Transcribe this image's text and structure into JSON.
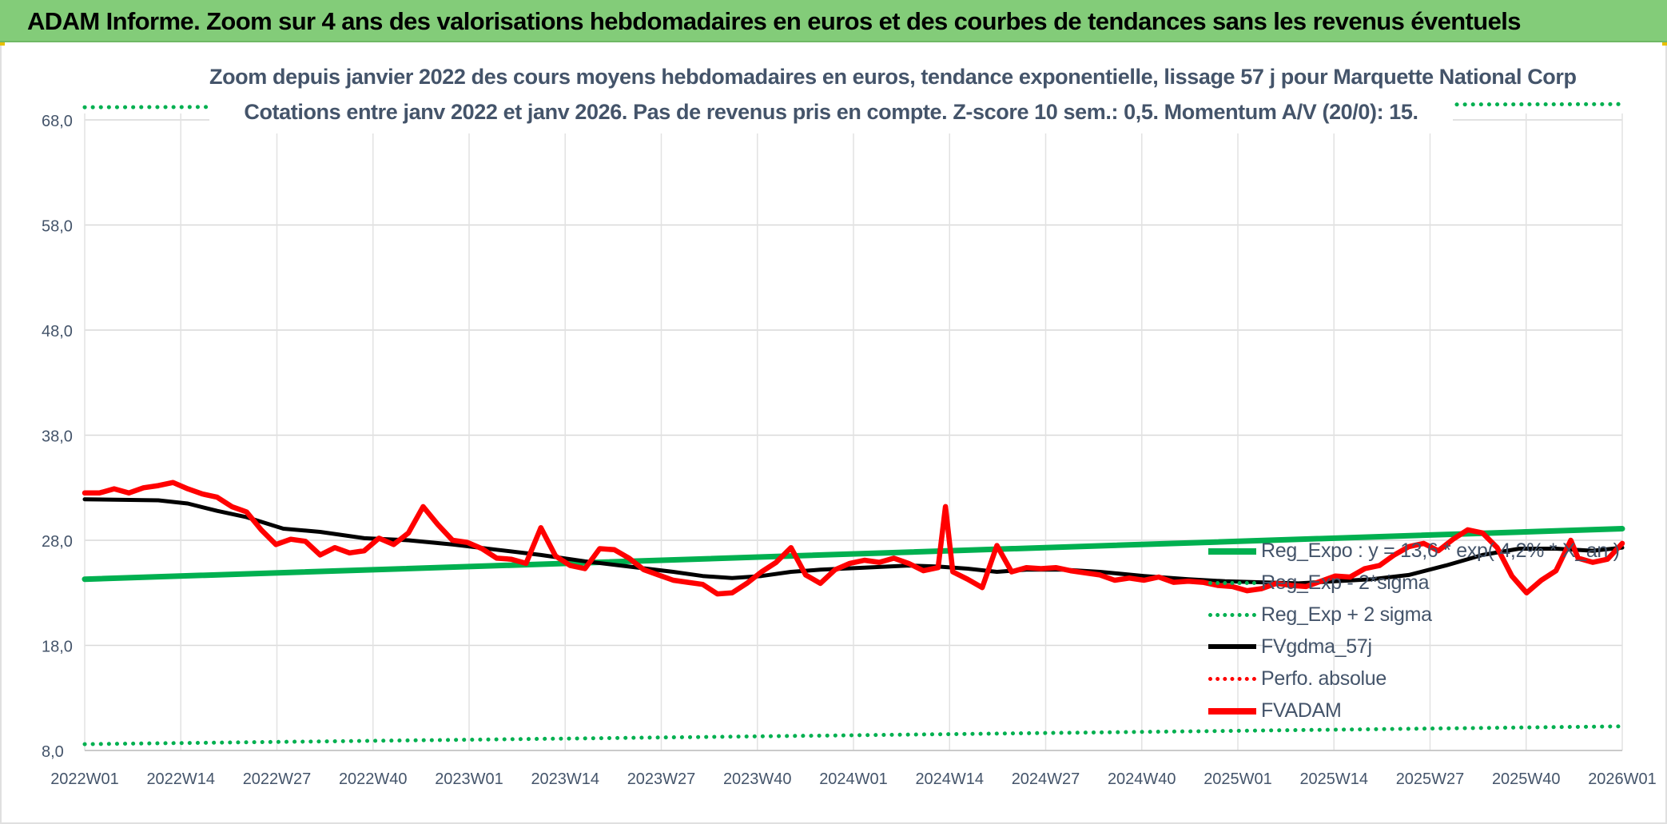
{
  "header": {
    "title": "ADAM Informe. Zoom sur 4 ans des valorisations hebdomadaires en euros et des courbes de tendances sans les revenus éventuels"
  },
  "chart_data": {
    "type": "line",
    "title": "Zoom depuis janvier 2022  des cours moyens hebdomadaires en euros, tendance exponentielle, lissage 57 j pour Marquette National Corp",
    "subtitle": "Cotations entre janv 2022 et janv 2026. Pas de revenus pris en compte. Z-score 10 sem.: 0,5. Momentum A/V (20/0): 15.",
    "xlabel": "",
    "ylabel": "",
    "ylim": [
      8,
      70
    ],
    "yticks": [
      "8,0",
      "18,0",
      "28,0",
      "38,0",
      "48,0",
      "58,0",
      "68,0"
    ],
    "ytick_values": [
      8,
      18,
      28,
      38,
      48,
      58,
      68
    ],
    "xticks": [
      "2022W01",
      "2022W14",
      "2022W27",
      "2022W40",
      "2023W01",
      "2023W14",
      "2023W27",
      "2023W40",
      "2024W01",
      "2024W14",
      "2024W27",
      "2024W40",
      "2025W01",
      "2025W14",
      "2025W27",
      "2025W40",
      "2026W01"
    ],
    "x_weeks": [
      0,
      209
    ],
    "grid": true,
    "legend_position": "bottom-right",
    "series": [
      {
        "name": "Reg_Expo : y = 13,6 * exp( 4,2% * X_an )",
        "color": "#00b050",
        "style": "solid",
        "points": [
          [
            0,
            24.3
          ],
          [
            209,
            29.1
          ]
        ]
      },
      {
        "name": "Reg_Exp - 2*sigma",
        "color": "#00b050",
        "style": "dotted",
        "points": [
          [
            0,
            8.6
          ],
          [
            209,
            10.3
          ]
        ]
      },
      {
        "name": "Reg_Exp + 2 sigma",
        "color": "#00b050",
        "style": "dotted",
        "points": [
          [
            0,
            69.2
          ],
          [
            209,
            69.5
          ]
        ]
      },
      {
        "name": "FVgdma_57j",
        "color": "#000000",
        "style": "solid",
        "points": [
          [
            0,
            31.9
          ],
          [
            10,
            31.8
          ],
          [
            14,
            31.5
          ],
          [
            18,
            30.8
          ],
          [
            22,
            30.2
          ],
          [
            27,
            29.1
          ],
          [
            32,
            28.8
          ],
          [
            38,
            28.2
          ],
          [
            44,
            28.0
          ],
          [
            50,
            27.6
          ],
          [
            56,
            27.1
          ],
          [
            62,
            26.6
          ],
          [
            68,
            26.0
          ],
          [
            74,
            25.5
          ],
          [
            80,
            25.0
          ],
          [
            84,
            24.6
          ],
          [
            88,
            24.4
          ],
          [
            92,
            24.6
          ],
          [
            96,
            25.0
          ],
          [
            100,
            25.2
          ],
          [
            106,
            25.4
          ],
          [
            112,
            25.6
          ],
          [
            116,
            25.5
          ],
          [
            120,
            25.3
          ],
          [
            124,
            25.0
          ],
          [
            128,
            25.2
          ],
          [
            133,
            25.2
          ],
          [
            138,
            25.0
          ],
          [
            144,
            24.6
          ],
          [
            150,
            24.3
          ],
          [
            155,
            24.1
          ],
          [
            160,
            24.0
          ],
          [
            165,
            23.9
          ],
          [
            170,
            24.1
          ],
          [
            175,
            24.3
          ],
          [
            180,
            24.7
          ],
          [
            185,
            25.6
          ],
          [
            190,
            26.6
          ],
          [
            195,
            27.2
          ],
          [
            200,
            27.2
          ],
          [
            205,
            27.0
          ],
          [
            209,
            27.3
          ]
        ]
      },
      {
        "name": "Perfo. absolue",
        "color": "#ff0000",
        "style": "dotted",
        "points": []
      },
      {
        "name": "FVADAM",
        "color": "#ff0000",
        "style": "solid",
        "points": [
          [
            0,
            32.5
          ],
          [
            2,
            32.5
          ],
          [
            4,
            32.9
          ],
          [
            6,
            32.5
          ],
          [
            8,
            33.0
          ],
          [
            10,
            33.2
          ],
          [
            12,
            33.5
          ],
          [
            14,
            32.9
          ],
          [
            16,
            32.4
          ],
          [
            18,
            32.1
          ],
          [
            20,
            31.2
          ],
          [
            22,
            30.7
          ],
          [
            24,
            29.0
          ],
          [
            26,
            27.6
          ],
          [
            28,
            28.1
          ],
          [
            30,
            27.9
          ],
          [
            32,
            26.6
          ],
          [
            34,
            27.3
          ],
          [
            36,
            26.8
          ],
          [
            38,
            27.0
          ],
          [
            40,
            28.2
          ],
          [
            42,
            27.6
          ],
          [
            44,
            28.7
          ],
          [
            46,
            31.2
          ],
          [
            48,
            29.5
          ],
          [
            50,
            28.0
          ],
          [
            52,
            27.8
          ],
          [
            54,
            27.2
          ],
          [
            56,
            26.3
          ],
          [
            58,
            26.2
          ],
          [
            60,
            25.8
          ],
          [
            62,
            29.2
          ],
          [
            64,
            26.5
          ],
          [
            66,
            25.6
          ],
          [
            68,
            25.3
          ],
          [
            70,
            27.2
          ],
          [
            72,
            27.1
          ],
          [
            74,
            26.3
          ],
          [
            76,
            25.2
          ],
          [
            78,
            24.7
          ],
          [
            80,
            24.2
          ],
          [
            82,
            24.0
          ],
          [
            84,
            23.8
          ],
          [
            86,
            22.9
          ],
          [
            88,
            23.0
          ],
          [
            90,
            23.9
          ],
          [
            92,
            25.0
          ],
          [
            94,
            25.9
          ],
          [
            96,
            27.3
          ],
          [
            98,
            24.7
          ],
          [
            100,
            23.9
          ],
          [
            102,
            25.2
          ],
          [
            104,
            25.8
          ],
          [
            106,
            26.1
          ],
          [
            108,
            25.9
          ],
          [
            110,
            26.3
          ],
          [
            112,
            25.8
          ],
          [
            114,
            25.1
          ],
          [
            116,
            25.4
          ],
          [
            117,
            31.2
          ],
          [
            118,
            25.0
          ],
          [
            120,
            24.3
          ],
          [
            122,
            23.5
          ],
          [
            124,
            27.5
          ],
          [
            126,
            25.0
          ],
          [
            128,
            25.4
          ],
          [
            130,
            25.3
          ],
          [
            132,
            25.4
          ],
          [
            134,
            25.1
          ],
          [
            136,
            24.9
          ],
          [
            138,
            24.7
          ],
          [
            140,
            24.2
          ],
          [
            142,
            24.4
          ],
          [
            144,
            24.2
          ],
          [
            146,
            24.5
          ],
          [
            148,
            24.0
          ],
          [
            150,
            24.1
          ],
          [
            152,
            24.0
          ],
          [
            154,
            23.7
          ],
          [
            156,
            23.6
          ],
          [
            158,
            23.2
          ],
          [
            160,
            23.4
          ],
          [
            162,
            23.9
          ],
          [
            164,
            23.7
          ],
          [
            166,
            23.6
          ],
          [
            168,
            24.1
          ],
          [
            170,
            24.6
          ],
          [
            172,
            24.5
          ],
          [
            174,
            25.3
          ],
          [
            176,
            25.6
          ],
          [
            178,
            26.6
          ],
          [
            180,
            27.4
          ],
          [
            182,
            27.7
          ],
          [
            184,
            27.0
          ],
          [
            186,
            28.1
          ],
          [
            188,
            29.0
          ],
          [
            190,
            28.7
          ],
          [
            192,
            27.3
          ],
          [
            194,
            24.6
          ],
          [
            196,
            23.0
          ],
          [
            198,
            24.2
          ],
          [
            200,
            25.1
          ],
          [
            202,
            28.0
          ],
          [
            203,
            26.3
          ],
          [
            205,
            25.9
          ],
          [
            207,
            26.2
          ],
          [
            209,
            27.7
          ]
        ]
      }
    ]
  }
}
